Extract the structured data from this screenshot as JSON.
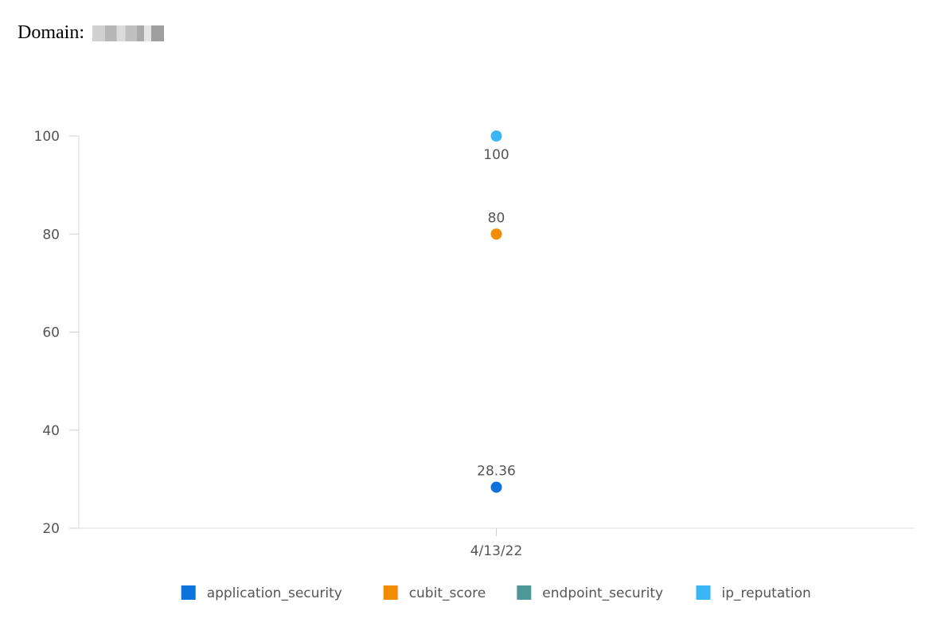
{
  "page": {
    "heading_label": "Domain:"
  },
  "chart_data": {
    "type": "scatter",
    "categories": [
      "4/13/22"
    ],
    "ylim": [
      20,
      100
    ],
    "yticks": [
      20,
      40,
      60,
      80,
      100
    ],
    "series": [
      {
        "name": "application_security",
        "color": "#0b73d9",
        "values": [
          28.36
        ],
        "labels": [
          "28.36"
        ],
        "label_position": "above"
      },
      {
        "name": "cubit_score",
        "color": "#f28c00",
        "values": [
          80
        ],
        "labels": [
          "80"
        ],
        "label_position": "above"
      },
      {
        "name": "endpoint_security",
        "color": "#4f9898",
        "values": [
          null
        ],
        "labels": [
          null
        ],
        "label_position": "above"
      },
      {
        "name": "ip_reputation",
        "color": "#3bb6f5",
        "values": [
          100
        ],
        "labels": [
          "100"
        ],
        "label_position": "below"
      }
    ],
    "legend": "bottom",
    "grid": false
  }
}
